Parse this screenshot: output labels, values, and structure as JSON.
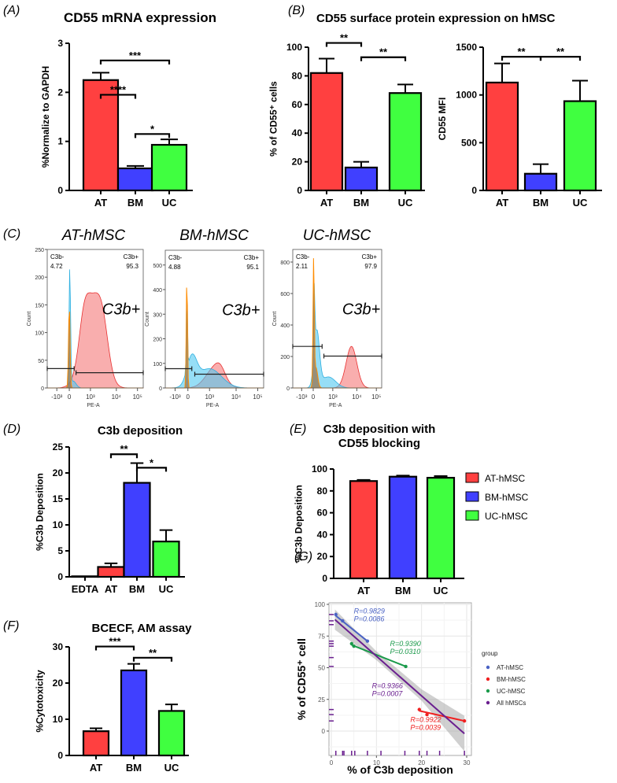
{
  "panel_labels": [
    "(A)",
    "(B)",
    "(C)",
    "(D)",
    "(E)",
    "(F)",
    "(G)"
  ],
  "colors": {
    "AT": "#ff4040",
    "BM": "#4040ff",
    "UC": "#40ff40",
    "scatter_AT": "#4a62c4",
    "scatter_BM": "#f02020",
    "scatter_UC": "#1a9a4a",
    "scatter_All": "#6a1f8f"
  },
  "panel_B_title": "CD55 surface protein expression on hMSC",
  "chart_data": [
    {
      "id": "A",
      "type": "bar",
      "title": "CD55 mRNA expression",
      "ylabel": "%Normalize to GAPDH",
      "ylim": [
        0,
        3
      ],
      "yticks": [
        "0",
        "1",
        "2",
        "3"
      ],
      "categories": [
        "AT",
        "BM",
        "UC"
      ],
      "values": [
        2.25,
        0.45,
        0.93
      ],
      "errors": [
        0.15,
        0.05,
        0.11
      ],
      "significance": [
        {
          "from": 0,
          "to": 1,
          "label": "****",
          "y": 1.95
        },
        {
          "from": 0,
          "to": 2,
          "label": "***",
          "y": 2.65
        },
        {
          "from": 1,
          "to": 2,
          "label": "*",
          "y": 1.15
        }
      ]
    },
    {
      "id": "B1",
      "type": "bar",
      "title": "",
      "ylabel": "% of CD55⁺ cells",
      "ylim": [
        0,
        100
      ],
      "yticks": [
        "0",
        "20",
        "40",
        "60",
        "80",
        "100"
      ],
      "categories": [
        "AT",
        "BM",
        "UC"
      ],
      "values": [
        82,
        16,
        68
      ],
      "errors": [
        10,
        4,
        6
      ],
      "significance": [
        {
          "from": 0,
          "to": 1,
          "label": "**",
          "y": 103
        },
        {
          "from": 1,
          "to": 2,
          "label": "**",
          "y": 93
        }
      ]
    },
    {
      "id": "B2",
      "type": "bar",
      "title": "",
      "ylabel": "CD55 MFI",
      "ylim": [
        0,
        1500
      ],
      "yticks": [
        "0",
        "500",
        "1000",
        "1500"
      ],
      "categories": [
        "AT",
        "BM",
        "UC"
      ],
      "values": [
        1130,
        175,
        935
      ],
      "errors": [
        200,
        100,
        215
      ],
      "significance": [
        {
          "from": 0,
          "to": 1,
          "label": "**",
          "y": 1400
        },
        {
          "from": 1,
          "to": 2,
          "label": "**",
          "y": 1400
        }
      ]
    },
    {
      "id": "D",
      "type": "bar",
      "title": "C3b deposition",
      "ylabel": "%C3b Deposition",
      "ylim": [
        0,
        25
      ],
      "yticks": [
        "0",
        "5",
        "10",
        "15",
        "20",
        "25"
      ],
      "categories": [
        "EDTA",
        "AT",
        "BM",
        "UC"
      ],
      "values": [
        0.1,
        1.9,
        18.1,
        6.8
      ],
      "errors": [
        0,
        0.7,
        3.8,
        2.2
      ],
      "significance": [
        {
          "from": 1,
          "to": 2,
          "label": "**",
          "y": 23.6
        },
        {
          "from": 2,
          "to": 3,
          "label": "*",
          "y": 21
        }
      ]
    },
    {
      "id": "E",
      "type": "bar",
      "title": "C3b deposition with",
      "title2": "CD55 blocking",
      "ylabel": "%C3b Deposition",
      "ylim": [
        0,
        100
      ],
      "yticks": [
        "0",
        "20",
        "40",
        "60",
        "80",
        "100"
      ],
      "categories": [
        "AT",
        "BM",
        "UC"
      ],
      "values": [
        89,
        93,
        92
      ],
      "errors": [
        1,
        1,
        1.5
      ],
      "legend": [
        "AT-hMSC",
        "BM-hMSC",
        "UC-hMSC"
      ],
      "legend_position": "right",
      "significance": []
    },
    {
      "id": "F",
      "type": "bar",
      "title": "BCECF, AM assay",
      "ylabel": "%Cytotoxicity",
      "ylim": [
        0,
        30
      ],
      "yticks": [
        "0",
        "10",
        "20",
        "30"
      ],
      "categories": [
        "AT",
        "BM",
        "UC"
      ],
      "values": [
        6.7,
        23.5,
        12.3
      ],
      "errors": [
        0.8,
        1.8,
        1.8
      ],
      "significance": [
        {
          "from": 0,
          "to": 1,
          "label": "***",
          "y": 30.1
        },
        {
          "from": 1,
          "to": 2,
          "label": "**",
          "y": 27
        }
      ]
    },
    {
      "id": "G",
      "type": "scatter",
      "xlabel": "% of C3b deposition",
      "ylabel": "% of CD55⁺ cell",
      "xlim": [
        0,
        30
      ],
      "ylim": [
        -20,
        100
      ],
      "xticks": [
        "0",
        "10",
        "20",
        "30"
      ],
      "yticks": [
        "0",
        "25",
        "50",
        "75",
        "100"
      ],
      "legend_title": "group",
      "legend_position": "right",
      "series": [
        {
          "name": "AT-hMSC",
          "key": "scatter_AT",
          "x": [
            1,
            2.5,
            8
          ],
          "y": [
            92,
            87,
            71
          ],
          "fit": [
            [
              1,
              91
            ],
            [
              8,
              71
            ]
          ],
          "R": "R=0.9829",
          "P": "P=0.0086",
          "label_at": [
            5,
            93
          ]
        },
        {
          "name": "BM-hMSC",
          "key": "scatter_BM",
          "x": [
            19.5,
            21.2,
            29.5
          ],
          "y": [
            17,
            13,
            8
          ],
          "fit": [
            [
              19.5,
              16
            ],
            [
              29.5,
              8
            ]
          ],
          "R": "R=0.9922",
          "P": "P=0.0039",
          "label_at": [
            17.5,
            7
          ]
        },
        {
          "name": "UC-hMSC",
          "key": "scatter_UC",
          "x": [
            4.5,
            5,
            16.5
          ],
          "y": [
            69,
            67,
            51
          ],
          "fit": [
            [
              4.5,
              68
            ],
            [
              16.5,
              51
            ]
          ],
          "R": "R=0.9390",
          "P": "P=0.0310",
          "label_at": [
            13,
            67
          ]
        },
        {
          "name": "All hMSCs",
          "key": "scatter_All",
          "x": [],
          "y": [],
          "fit": [
            [
              0.8,
              88
            ],
            [
              29.5,
              -2
            ]
          ],
          "R": "R=0.9366",
          "P": "P=0.0007",
          "label_at": [
            9,
            34
          ]
        }
      ],
      "rug_x": [
        1,
        2.5,
        2.8,
        4.5,
        5.2,
        8,
        11,
        16.3,
        19.5,
        21.2,
        24,
        29.5
      ],
      "rug_y": [
        92,
        87,
        84,
        71,
        69,
        67,
        58,
        51,
        17,
        13,
        8
      ]
    }
  ],
  "flow": [
    {
      "title": "AT-hMSC",
      "neg_label": "C3b-",
      "neg_value": "4.72",
      "pos_label": "C3b+",
      "pos_value": "95.3",
      "big_label": "C3b+",
      "yticks": [
        "0",
        "50",
        "100",
        "150",
        "200",
        "250"
      ],
      "ymax": 250
    },
    {
      "title": "BM-hMSC",
      "neg_label": "C3b-",
      "neg_value": "4.88",
      "pos_label": "C3b+",
      "pos_value": "95.1",
      "big_label": "C3b+",
      "yticks": [
        "0",
        "100",
        "200",
        "300",
        "400",
        "500"
      ],
      "ymax": 560
    },
    {
      "title": "UC-hMSC",
      "neg_label": "C3b-",
      "neg_value": "2.11",
      "pos_label": "C3b+",
      "pos_value": "97.9",
      "big_label": "C3b+",
      "yticks": [
        "0",
        "200",
        "400",
        "600",
        "800"
      ],
      "ymax": 880
    }
  ],
  "flow_axis": {
    "ylabel": "Count",
    "xlabel": "PE-A",
    "xticks": [
      "-10³",
      "0",
      "10³",
      "10⁴",
      "10⁵"
    ]
  }
}
